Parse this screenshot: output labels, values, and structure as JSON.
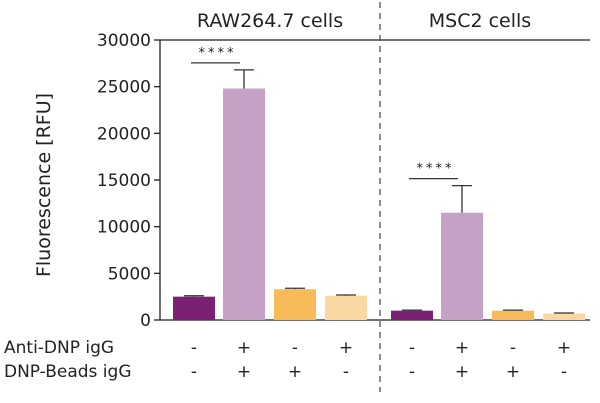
{
  "chart_data": {
    "type": "bar",
    "ylabel": "Fluorescence [RFU]",
    "ylim": [
      0,
      30000
    ],
    "yticks": [
      0,
      5000,
      10000,
      15000,
      20000,
      25000,
      30000
    ],
    "ytick_labels": [
      "0",
      "5000",
      "10000",
      "15000",
      "20000",
      "25000",
      "30000"
    ],
    "row_labels": [
      "Anti-DNP igG",
      "DNP-Beads igG"
    ],
    "colors": [
      "#7b2073",
      "#c5a1c6",
      "#f7bb59",
      "#fbd8a3"
    ],
    "panels": [
      {
        "title": "RAW264.7 cells",
        "values": [
          2500,
          24800,
          3300,
          2600
        ],
        "errors": [
          100,
          2000,
          100,
          80
        ],
        "anti_dnp": [
          "-",
          "+",
          "-",
          "+"
        ],
        "dnp_beads": [
          "-",
          "+",
          "+",
          "-"
        ],
        "significance": {
          "bars": [
            0,
            1
          ],
          "label": "****"
        }
      },
      {
        "title": "MSC2 cells",
        "values": [
          1000,
          11500,
          1000,
          700
        ],
        "errors": [
          60,
          2900,
          60,
          50
        ],
        "anti_dnp": [
          "-",
          "+",
          "-",
          "+"
        ],
        "dnp_beads": [
          "-",
          "+",
          "+",
          "-"
        ],
        "significance": {
          "bars": [
            0,
            1
          ],
          "label": "****"
        }
      }
    ]
  }
}
